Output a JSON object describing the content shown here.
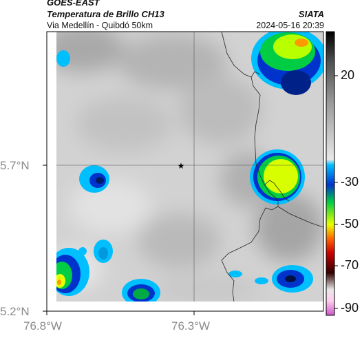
{
  "header": {
    "satellite": "GOES-EAST",
    "product": "Temperatura de Brillo CH13",
    "organization": "SIATA",
    "subtitle": "Via Medellín - Quibdó 50km",
    "datetime": "2024-05-16 20:39"
  },
  "axes": {
    "y_ticks": [
      "5.7°N",
      "5.2°N"
    ],
    "x_ticks": [
      "76.8°W",
      "76.3°W"
    ]
  },
  "colorbar": {
    "ticks": [
      "20",
      "-30",
      "-50",
      "-70",
      "-90"
    ],
    "colors": [
      "#000000",
      "#4c4c4c",
      "#9a9a9a",
      "#e0e0e0",
      "#00bfff",
      "#0033cc",
      "#00cc44",
      "#e8ff00",
      "#ff6600",
      "#cc0000",
      "#330000",
      "#ffccee",
      "#cc55cc"
    ]
  },
  "map": {
    "marker_symbol": "★"
  }
}
